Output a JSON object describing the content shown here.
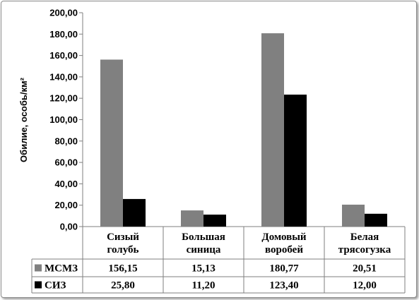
{
  "chart_data": {
    "type": "bar",
    "title": "",
    "xlabel": "",
    "ylabel": "Обилие, особь/км²",
    "ylim": [
      0,
      200
    ],
    "ytick_step": 20,
    "ytick_labels": [
      "0,00",
      "20,00",
      "40,00",
      "60,00",
      "80,00",
      "100,00",
      "120,00",
      "140,00",
      "160,00",
      "180,00",
      "200,00"
    ],
    "grid": false,
    "legend": "data-table",
    "categories": [
      [
        "Сизый",
        "голубь"
      ],
      [
        "Большая",
        "синица"
      ],
      [
        "Домовый",
        "воробей"
      ],
      [
        "Белая",
        "трясогузка"
      ]
    ],
    "series": [
      {
        "name": "МСМЗ",
        "color": "#808080",
        "values": [
          156.15,
          15.13,
          180.77,
          20.51
        ],
        "labels": [
          "156,15",
          "15,13",
          "180,77",
          "20,51"
        ]
      },
      {
        "name": "СИЗ",
        "color": "#000000",
        "values": [
          25.8,
          11.2,
          123.4,
          12.0
        ],
        "labels": [
          "25,80",
          "11,20",
          "123,40",
          "12,00"
        ]
      }
    ]
  }
}
